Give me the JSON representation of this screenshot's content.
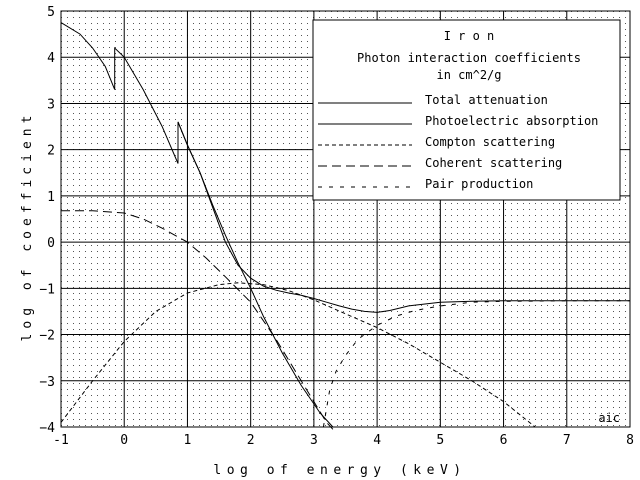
{
  "chart_data": {
    "type": "line",
    "title": "I r o n",
    "subtitle_line1": "Photon interaction coefficients",
    "subtitle_line2": "in cm^2/g",
    "xlabel": "log of energy (keV)",
    "ylabel": "log of coefficient",
    "xlim": [
      -1,
      8
    ],
    "ylim": [
      -4,
      5
    ],
    "xticks": [
      "-1",
      "0",
      "1",
      "2",
      "3",
      "4",
      "5",
      "6",
      "7",
      "8"
    ],
    "yticks": [
      "5",
      "4",
      "3",
      "2",
      "1",
      "0",
      "−1",
      "−2",
      "−3",
      "−4"
    ],
    "grid": true,
    "legend_position": "top-right",
    "credit": "aic",
    "series": [
      {
        "name": "Total attenuation",
        "dash": "solid",
        "x": [
          -1,
          -0.7,
          -0.5,
          -0.3,
          -0.15,
          -0.15,
          0,
          0.3,
          0.6,
          0.85,
          0.85,
          1,
          1.2,
          1.4,
          1.6,
          1.8,
          2,
          2.2,
          2.4,
          2.6,
          2.8,
          3,
          3.2,
          3.4,
          3.6,
          3.8,
          4,
          4.2,
          4.5,
          5,
          5.5,
          6,
          7,
          8
        ],
        "y": [
          4.75,
          4.5,
          4.2,
          3.8,
          3.3,
          4.2,
          4.0,
          3.3,
          2.5,
          1.7,
          2.6,
          2.1,
          1.5,
          0.75,
          0.0,
          -0.5,
          -0.78,
          -0.95,
          -1.04,
          -1.1,
          -1.15,
          -1.22,
          -1.3,
          -1.38,
          -1.45,
          -1.5,
          -1.52,
          -1.48,
          -1.38,
          -1.3,
          -1.28,
          -1.27,
          -1.27,
          -1.27
        ]
      },
      {
        "name": "Photoelectric absorption",
        "dash": "solid",
        "x": [
          0.85,
          1,
          1.2,
          1.4,
          1.6,
          1.8,
          2,
          2.2,
          2.5,
          2.8,
          3.1,
          3.3
        ],
        "y": [
          2.6,
          2.1,
          1.5,
          0.8,
          0.15,
          -0.45,
          -1.0,
          -1.6,
          -2.4,
          -3.1,
          -3.7,
          -4.0
        ]
      },
      {
        "name": "Compton scattering",
        "dash": "4 3",
        "x": [
          -1,
          -0.5,
          0,
          0.5,
          1,
          1.5,
          1.8,
          2.2,
          2.6,
          3,
          3.5,
          4,
          4.5,
          5,
          5.5,
          6,
          6.5
        ],
        "y": [
          -3.9,
          -3.0,
          -2.15,
          -1.5,
          -1.1,
          -0.92,
          -0.88,
          -0.92,
          -1.05,
          -1.25,
          -1.55,
          -1.85,
          -2.2,
          -2.6,
          -3.0,
          -3.45,
          -4.0
        ]
      },
      {
        "name": "Coherent scattering",
        "dash": "9 5",
        "x": [
          -1,
          -0.5,
          0,
          0.3,
          0.6,
          1,
          1.3,
          1.6,
          2,
          2.4,
          2.8,
          3.0,
          3.2,
          3.3
        ],
        "y": [
          0.68,
          0.68,
          0.63,
          0.5,
          0.3,
          0.0,
          -0.35,
          -0.75,
          -1.3,
          -2.1,
          -3.0,
          -3.45,
          -3.9,
          -4.05
        ]
      },
      {
        "name": "Pair production",
        "dash": "4 7",
        "x": [
          3.15,
          3.25,
          3.35,
          3.5,
          3.7,
          4,
          4.3,
          4.6,
          5,
          5.5,
          6,
          7,
          8
        ],
        "y": [
          -4.0,
          -3.2,
          -2.8,
          -2.45,
          -2.1,
          -1.8,
          -1.6,
          -1.48,
          -1.38,
          -1.3,
          -1.28,
          -1.27,
          -1.27
        ]
      }
    ]
  }
}
